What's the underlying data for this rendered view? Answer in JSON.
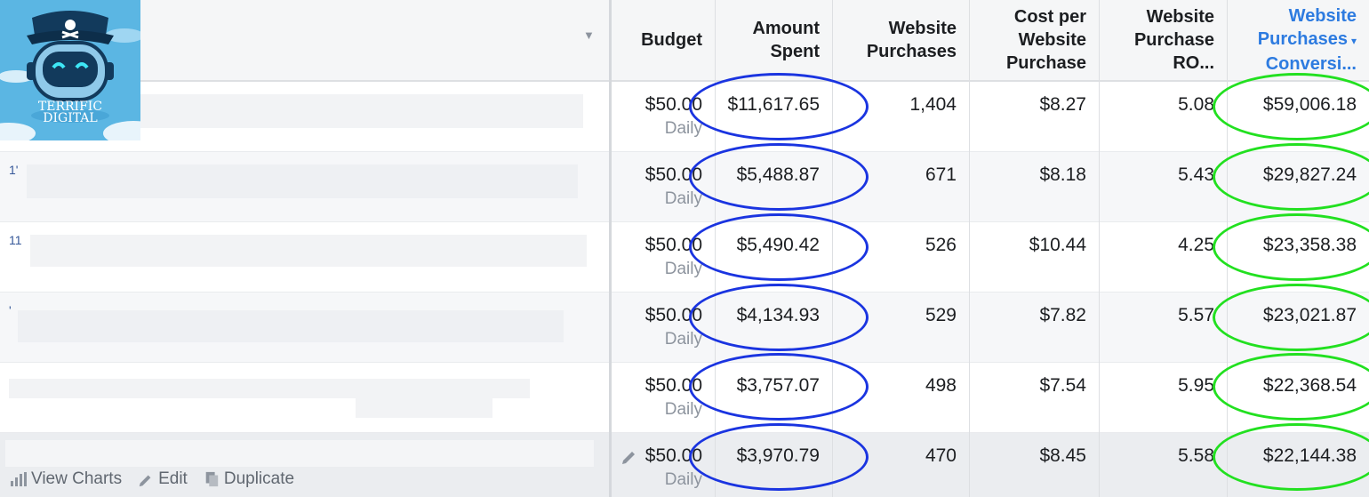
{
  "logo": {
    "line1": "TERRIFIC",
    "line2": "DIGITAL"
  },
  "columns": {
    "budget": "Budget",
    "amount_spent": [
      "Amount",
      "Spent"
    ],
    "website_purchases": [
      "Website",
      "Purchases"
    ],
    "cost_per_purchase": [
      "Cost per",
      "Website",
      "Purchase"
    ],
    "roas": [
      "Website",
      "Purchase",
      "RO..."
    ],
    "conversion_value": [
      "Website",
      "Purchases",
      "Conversi..."
    ]
  },
  "sort_indicator": "▾",
  "rows": [
    {
      "mark": "",
      "budget": "$50.00",
      "budget_type": "Daily",
      "amount_spent": "$11,617.65",
      "purchases": "1,404",
      "cost_per_purchase": "$8.27",
      "roas": "5.08",
      "conversion_value": "$59,006.18"
    },
    {
      "mark": "1'",
      "budget": "$50.00",
      "budget_type": "Daily",
      "amount_spent": "$5,488.87",
      "purchases": "671",
      "cost_per_purchase": "$8.18",
      "roas": "5.43",
      "conversion_value": "$29,827.24"
    },
    {
      "mark": "11",
      "budget": "$50.00",
      "budget_type": "Daily",
      "amount_spent": "$5,490.42",
      "purchases": "526",
      "cost_per_purchase": "$10.44",
      "roas": "4.25",
      "conversion_value": "$23,358.38"
    },
    {
      "mark": "'",
      "budget": "$50.00",
      "budget_type": "Daily",
      "amount_spent": "$4,134.93",
      "purchases": "529",
      "cost_per_purchase": "$7.82",
      "roas": "5.57",
      "conversion_value": "$23,021.87"
    },
    {
      "mark": "",
      "budget": "$50.00",
      "budget_type": "Daily",
      "amount_spent": "$3,757.07",
      "purchases": "498",
      "cost_per_purchase": "$7.54",
      "roas": "5.95",
      "conversion_value": "$22,368.54"
    },
    {
      "mark": "",
      "budget": "$50.00",
      "budget_type": "Daily",
      "amount_spent": "$3,970.79",
      "purchases": "470",
      "cost_per_purchase": "$8.45",
      "roas": "5.58",
      "conversion_value": "$22,144.38"
    }
  ],
  "row_actions": {
    "view_charts": "View Charts",
    "edit": "Edit",
    "duplicate": "Duplicate"
  },
  "colors": {
    "highlight_amount": "#1a34e0",
    "highlight_conversion": "#22e020",
    "active_column": "#2d7be0"
  }
}
